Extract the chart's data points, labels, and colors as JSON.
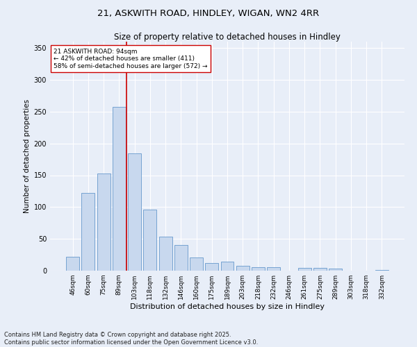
{
  "title_line1": "21, ASKWITH ROAD, HINDLEY, WIGAN, WN2 4RR",
  "title_line2": "Size of property relative to detached houses in Hindley",
  "xlabel": "Distribution of detached houses by size in Hindley",
  "ylabel": "Number of detached properties",
  "bar_color": "#c8d8ee",
  "bar_edge_color": "#6699cc",
  "categories": [
    "46sqm",
    "60sqm",
    "75sqm",
    "89sqm",
    "103sqm",
    "118sqm",
    "132sqm",
    "146sqm",
    "160sqm",
    "175sqm",
    "189sqm",
    "203sqm",
    "218sqm",
    "232sqm",
    "246sqm",
    "261sqm",
    "275sqm",
    "289sqm",
    "303sqm",
    "318sqm",
    "332sqm"
  ],
  "values": [
    22,
    122,
    153,
    257,
    184,
    96,
    54,
    40,
    21,
    12,
    14,
    8,
    6,
    5,
    0,
    4,
    4,
    3,
    0,
    0,
    1
  ],
  "ylim": [
    0,
    360
  ],
  "yticks": [
    0,
    50,
    100,
    150,
    200,
    250,
    300,
    350
  ],
  "vline_x": 3.5,
  "vline_color": "#cc0000",
  "annotation_text": "21 ASKWITH ROAD: 94sqm\n← 42% of detached houses are smaller (411)\n58% of semi-detached houses are larger (572) →",
  "annotation_box_facecolor": "#ffffff",
  "annotation_box_edgecolor": "#cc0000",
  "footnote": "Contains HM Land Registry data © Crown copyright and database right 2025.\nContains public sector information licensed under the Open Government Licence v3.0.",
  "bg_color": "#e8eef8",
  "plot_bg_color": "#e8eef8",
  "grid_color": "#ffffff",
  "title1_fontsize": 9.5,
  "title2_fontsize": 8.5,
  "xlabel_fontsize": 8,
  "ylabel_fontsize": 7.5,
  "tick_fontsize": 6.5,
  "annot_fontsize": 6.5,
  "footnote_fontsize": 6
}
